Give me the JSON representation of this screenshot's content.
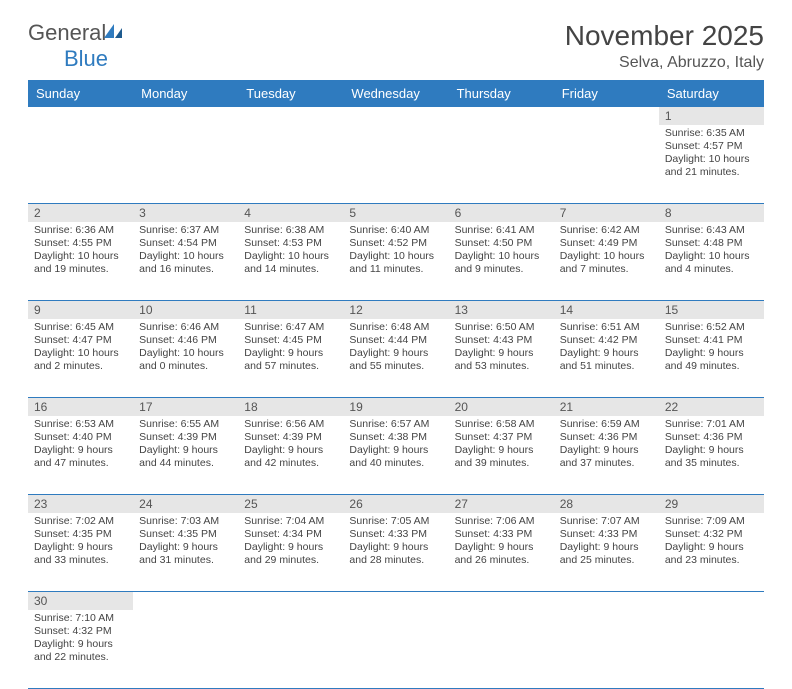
{
  "brand": {
    "general": "General",
    "blue": "Blue"
  },
  "title": "November 2025",
  "location": "Selva, Abruzzo, Italy",
  "colors": {
    "header_bg": "#2f7bbf",
    "header_text": "#ffffff",
    "daynum_bg": "#e6e6e6",
    "grid_line": "#2f7bbf",
    "text": "#444444"
  },
  "day_headers": [
    "Sunday",
    "Monday",
    "Tuesday",
    "Wednesday",
    "Thursday",
    "Friday",
    "Saturday"
  ],
  "weeks": [
    [
      null,
      null,
      null,
      null,
      null,
      null,
      {
        "n": "1",
        "sr": "Sunrise: 6:35 AM",
        "ss": "Sunset: 4:57 PM",
        "dl": "Daylight: 10 hours and 21 minutes."
      }
    ],
    [
      {
        "n": "2",
        "sr": "Sunrise: 6:36 AM",
        "ss": "Sunset: 4:55 PM",
        "dl": "Daylight: 10 hours and 19 minutes."
      },
      {
        "n": "3",
        "sr": "Sunrise: 6:37 AM",
        "ss": "Sunset: 4:54 PM",
        "dl": "Daylight: 10 hours and 16 minutes."
      },
      {
        "n": "4",
        "sr": "Sunrise: 6:38 AM",
        "ss": "Sunset: 4:53 PM",
        "dl": "Daylight: 10 hours and 14 minutes."
      },
      {
        "n": "5",
        "sr": "Sunrise: 6:40 AM",
        "ss": "Sunset: 4:52 PM",
        "dl": "Daylight: 10 hours and 11 minutes."
      },
      {
        "n": "6",
        "sr": "Sunrise: 6:41 AM",
        "ss": "Sunset: 4:50 PM",
        "dl": "Daylight: 10 hours and 9 minutes."
      },
      {
        "n": "7",
        "sr": "Sunrise: 6:42 AM",
        "ss": "Sunset: 4:49 PM",
        "dl": "Daylight: 10 hours and 7 minutes."
      },
      {
        "n": "8",
        "sr": "Sunrise: 6:43 AM",
        "ss": "Sunset: 4:48 PM",
        "dl": "Daylight: 10 hours and 4 minutes."
      }
    ],
    [
      {
        "n": "9",
        "sr": "Sunrise: 6:45 AM",
        "ss": "Sunset: 4:47 PM",
        "dl": "Daylight: 10 hours and 2 minutes."
      },
      {
        "n": "10",
        "sr": "Sunrise: 6:46 AM",
        "ss": "Sunset: 4:46 PM",
        "dl": "Daylight: 10 hours and 0 minutes."
      },
      {
        "n": "11",
        "sr": "Sunrise: 6:47 AM",
        "ss": "Sunset: 4:45 PM",
        "dl": "Daylight: 9 hours and 57 minutes."
      },
      {
        "n": "12",
        "sr": "Sunrise: 6:48 AM",
        "ss": "Sunset: 4:44 PM",
        "dl": "Daylight: 9 hours and 55 minutes."
      },
      {
        "n": "13",
        "sr": "Sunrise: 6:50 AM",
        "ss": "Sunset: 4:43 PM",
        "dl": "Daylight: 9 hours and 53 minutes."
      },
      {
        "n": "14",
        "sr": "Sunrise: 6:51 AM",
        "ss": "Sunset: 4:42 PM",
        "dl": "Daylight: 9 hours and 51 minutes."
      },
      {
        "n": "15",
        "sr": "Sunrise: 6:52 AM",
        "ss": "Sunset: 4:41 PM",
        "dl": "Daylight: 9 hours and 49 minutes."
      }
    ],
    [
      {
        "n": "16",
        "sr": "Sunrise: 6:53 AM",
        "ss": "Sunset: 4:40 PM",
        "dl": "Daylight: 9 hours and 47 minutes."
      },
      {
        "n": "17",
        "sr": "Sunrise: 6:55 AM",
        "ss": "Sunset: 4:39 PM",
        "dl": "Daylight: 9 hours and 44 minutes."
      },
      {
        "n": "18",
        "sr": "Sunrise: 6:56 AM",
        "ss": "Sunset: 4:39 PM",
        "dl": "Daylight: 9 hours and 42 minutes."
      },
      {
        "n": "19",
        "sr": "Sunrise: 6:57 AM",
        "ss": "Sunset: 4:38 PM",
        "dl": "Daylight: 9 hours and 40 minutes."
      },
      {
        "n": "20",
        "sr": "Sunrise: 6:58 AM",
        "ss": "Sunset: 4:37 PM",
        "dl": "Daylight: 9 hours and 39 minutes."
      },
      {
        "n": "21",
        "sr": "Sunrise: 6:59 AM",
        "ss": "Sunset: 4:36 PM",
        "dl": "Daylight: 9 hours and 37 minutes."
      },
      {
        "n": "22",
        "sr": "Sunrise: 7:01 AM",
        "ss": "Sunset: 4:36 PM",
        "dl": "Daylight: 9 hours and 35 minutes."
      }
    ],
    [
      {
        "n": "23",
        "sr": "Sunrise: 7:02 AM",
        "ss": "Sunset: 4:35 PM",
        "dl": "Daylight: 9 hours and 33 minutes."
      },
      {
        "n": "24",
        "sr": "Sunrise: 7:03 AM",
        "ss": "Sunset: 4:35 PM",
        "dl": "Daylight: 9 hours and 31 minutes."
      },
      {
        "n": "25",
        "sr": "Sunrise: 7:04 AM",
        "ss": "Sunset: 4:34 PM",
        "dl": "Daylight: 9 hours and 29 minutes."
      },
      {
        "n": "26",
        "sr": "Sunrise: 7:05 AM",
        "ss": "Sunset: 4:33 PM",
        "dl": "Daylight: 9 hours and 28 minutes."
      },
      {
        "n": "27",
        "sr": "Sunrise: 7:06 AM",
        "ss": "Sunset: 4:33 PM",
        "dl": "Daylight: 9 hours and 26 minutes."
      },
      {
        "n": "28",
        "sr": "Sunrise: 7:07 AM",
        "ss": "Sunset: 4:33 PM",
        "dl": "Daylight: 9 hours and 25 minutes."
      },
      {
        "n": "29",
        "sr": "Sunrise: 7:09 AM",
        "ss": "Sunset: 4:32 PM",
        "dl": "Daylight: 9 hours and 23 minutes."
      }
    ],
    [
      {
        "n": "30",
        "sr": "Sunrise: 7:10 AM",
        "ss": "Sunset: 4:32 PM",
        "dl": "Daylight: 9 hours and 22 minutes."
      },
      null,
      null,
      null,
      null,
      null,
      null
    ]
  ]
}
